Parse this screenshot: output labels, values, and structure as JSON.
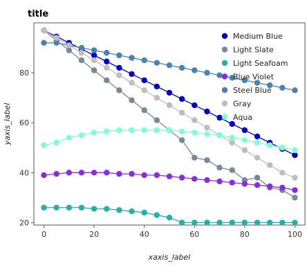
{
  "chart_data": {
    "type": "line",
    "title": "title",
    "xlabel": "xaxis_label",
    "ylabel": "yaxis_label",
    "xlim": [
      -4,
      104
    ],
    "ylim": [
      19,
      100
    ],
    "xticks": [
      0,
      20,
      40,
      60,
      80,
      100
    ],
    "yticks": [
      20,
      40,
      60,
      80
    ],
    "grid": false,
    "legend_position": "top-right",
    "x": [
      0,
      5,
      10,
      15,
      20,
      25,
      30,
      35,
      40,
      45,
      50,
      55,
      60,
      65,
      70,
      75,
      80,
      85,
      90,
      95,
      100
    ],
    "series": [
      {
        "name": "Medium Blue",
        "color": "#0000cd",
        "values": [
          97,
          94.5,
          92,
          89.5,
          87,
          84.5,
          82,
          79.5,
          77,
          74.5,
          72,
          69.5,
          67,
          64.5,
          62,
          59.5,
          57,
          54.5,
          52,
          49.5,
          47
        ]
      },
      {
        "name": "Light Slate",
        "color": "#778899",
        "values": [
          97,
          93,
          89,
          85,
          81,
          77,
          73,
          69,
          65,
          61,
          57,
          53,
          46,
          45,
          42,
          41,
          37,
          38,
          34,
          33,
          30
        ]
      },
      {
        "name": "Light Seafoam",
        "color": "#20b2aa",
        "values": [
          26,
          26,
          26,
          26,
          25.5,
          25.5,
          25,
          24.5,
          24,
          23,
          22,
          20,
          20,
          20,
          20,
          20,
          20,
          20,
          20,
          20,
          20
        ]
      },
      {
        "name": "Blue Violet",
        "color": "#8a2be2",
        "values": [
          39,
          39.5,
          40,
          40,
          40,
          40,
          39.5,
          39.5,
          39,
          39,
          38.5,
          38,
          37.5,
          37,
          36.5,
          36,
          35.5,
          35,
          34.5,
          34,
          33
        ]
      },
      {
        "name": "Steel Blue",
        "color": "#4682b4",
        "values": [
          92,
          92,
          91,
          90,
          89,
          88,
          87,
          86,
          85,
          84,
          83,
          82,
          81,
          80,
          79,
          78,
          77,
          76,
          75,
          74,
          73
        ]
      },
      {
        "name": "Gray",
        "color": "#bebebe",
        "values": [
          97,
          94,
          91,
          88,
          85,
          82,
          79,
          76,
          73,
          70,
          67,
          64,
          61,
          58,
          55,
          52,
          49,
          46,
          43,
          40,
          38
        ]
      },
      {
        "name": "Aqua",
        "color": "#7fffd4",
        "values": [
          51,
          52,
          54,
          55,
          56,
          56.5,
          57,
          57,
          57,
          57,
          57,
          56.5,
          56,
          55.5,
          55,
          54,
          53,
          52,
          51,
          50,
          49
        ]
      }
    ]
  }
}
